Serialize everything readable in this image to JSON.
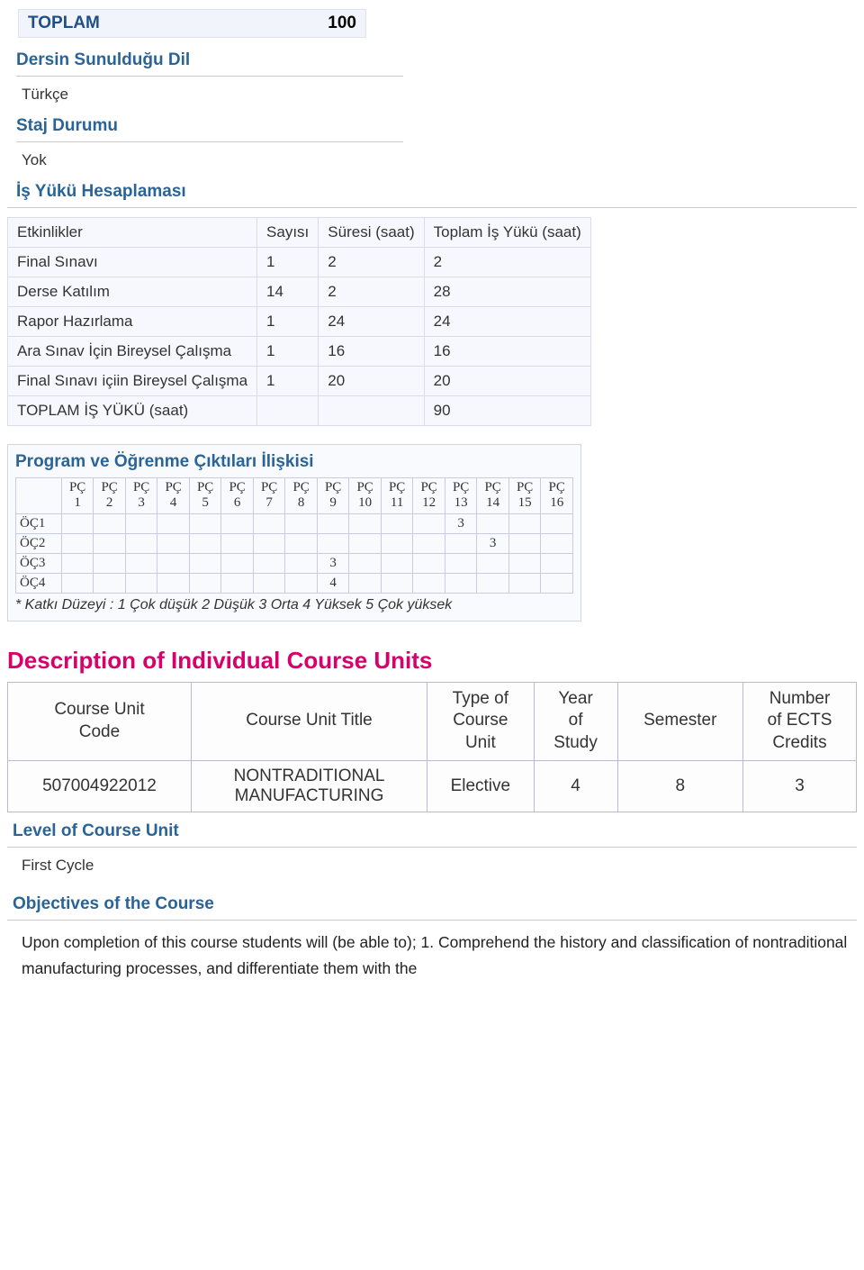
{
  "toplam_band": {
    "label": "TOPLAM",
    "value": "100"
  },
  "sections": {
    "dil_heading": "Dersin Sunulduğu Dil",
    "dil_value": "Türkçe",
    "staj_heading": "Staj Durumu",
    "staj_value": "Yok",
    "is_yuku_heading": "İş Yükü Hesaplaması"
  },
  "workload": {
    "headers": [
      "Etkinlikler",
      "Sayısı",
      "Süresi (saat)",
      "Toplam İş Yükü (saat)"
    ],
    "rows": [
      [
        "Final Sınavı",
        "1",
        "2",
        "2"
      ],
      [
        "Derse Katılım",
        "14",
        "2",
        "28"
      ],
      [
        "Rapor Hazırlama",
        "1",
        "24",
        "24"
      ],
      [
        "Ara Sınav İçin Bireysel Çalışma",
        "1",
        "16",
        "16"
      ],
      [
        "Final Sınavı içiin Bireysel Çalışma",
        "1",
        "20",
        "20"
      ],
      [
        "TOPLAM İŞ YÜKÜ (saat)",
        "",
        "",
        "90"
      ]
    ]
  },
  "matrix": {
    "heading": "Program ve Öğrenme Çıktıları İlişkisi",
    "col_prefix": "PÇ",
    "cols": [
      "1",
      "2",
      "3",
      "4",
      "5",
      "6",
      "7",
      "8",
      "9",
      "10",
      "11",
      "12",
      "13",
      "14",
      "15",
      "16"
    ],
    "rows": [
      {
        "label": "ÖÇ1",
        "cells": [
          "",
          "",
          "",
          "",
          "",
          "",
          "",
          "",
          "",
          "",
          "",
          "",
          "3",
          "",
          "",
          ""
        ]
      },
      {
        "label": "ÖÇ2",
        "cells": [
          "",
          "",
          "",
          "",
          "",
          "",
          "",
          "",
          "",
          "",
          "",
          "",
          "",
          "3",
          "",
          ""
        ]
      },
      {
        "label": "ÖÇ3",
        "cells": [
          "",
          "",
          "",
          "",
          "",
          "",
          "",
          "",
          "3",
          "",
          "",
          "",
          "",
          "",
          "",
          ""
        ]
      },
      {
        "label": "ÖÇ4",
        "cells": [
          "",
          "",
          "",
          "",
          "",
          "",
          "",
          "",
          "4",
          "",
          "",
          "",
          "",
          "",
          "",
          ""
        ]
      }
    ],
    "note": "* Katkı Düzeyi : 1 Çok düşük 2 Düşük 3 Orta 4 Yüksek 5 Çok yüksek"
  },
  "desc_heading": "Description of Individual Course Units",
  "course": {
    "headers": [
      "Course Unit Code",
      "Course Unit Title",
      "Type of Course Unit",
      "Year of Study",
      "Semester",
      "Number of ECTS Credits"
    ],
    "row": [
      "507004922012",
      "NONTRADITIONAL MANUFACTURING",
      "Elective",
      "4",
      "8",
      "3"
    ]
  },
  "level": {
    "heading": "Level of Course Unit",
    "value": "First Cycle"
  },
  "objectives": {
    "heading": "Objectives of the Course",
    "text": "Upon completion of this course students will (be able to); 1. Comprehend the history and classification of nontraditional manufacturing processes, and differentiate them with the"
  },
  "colors": {
    "heading_blue": "#2a6496",
    "heading_red": "#d9006c",
    "band_bg": "#f2f4fb",
    "border": "#d0d4e4"
  }
}
